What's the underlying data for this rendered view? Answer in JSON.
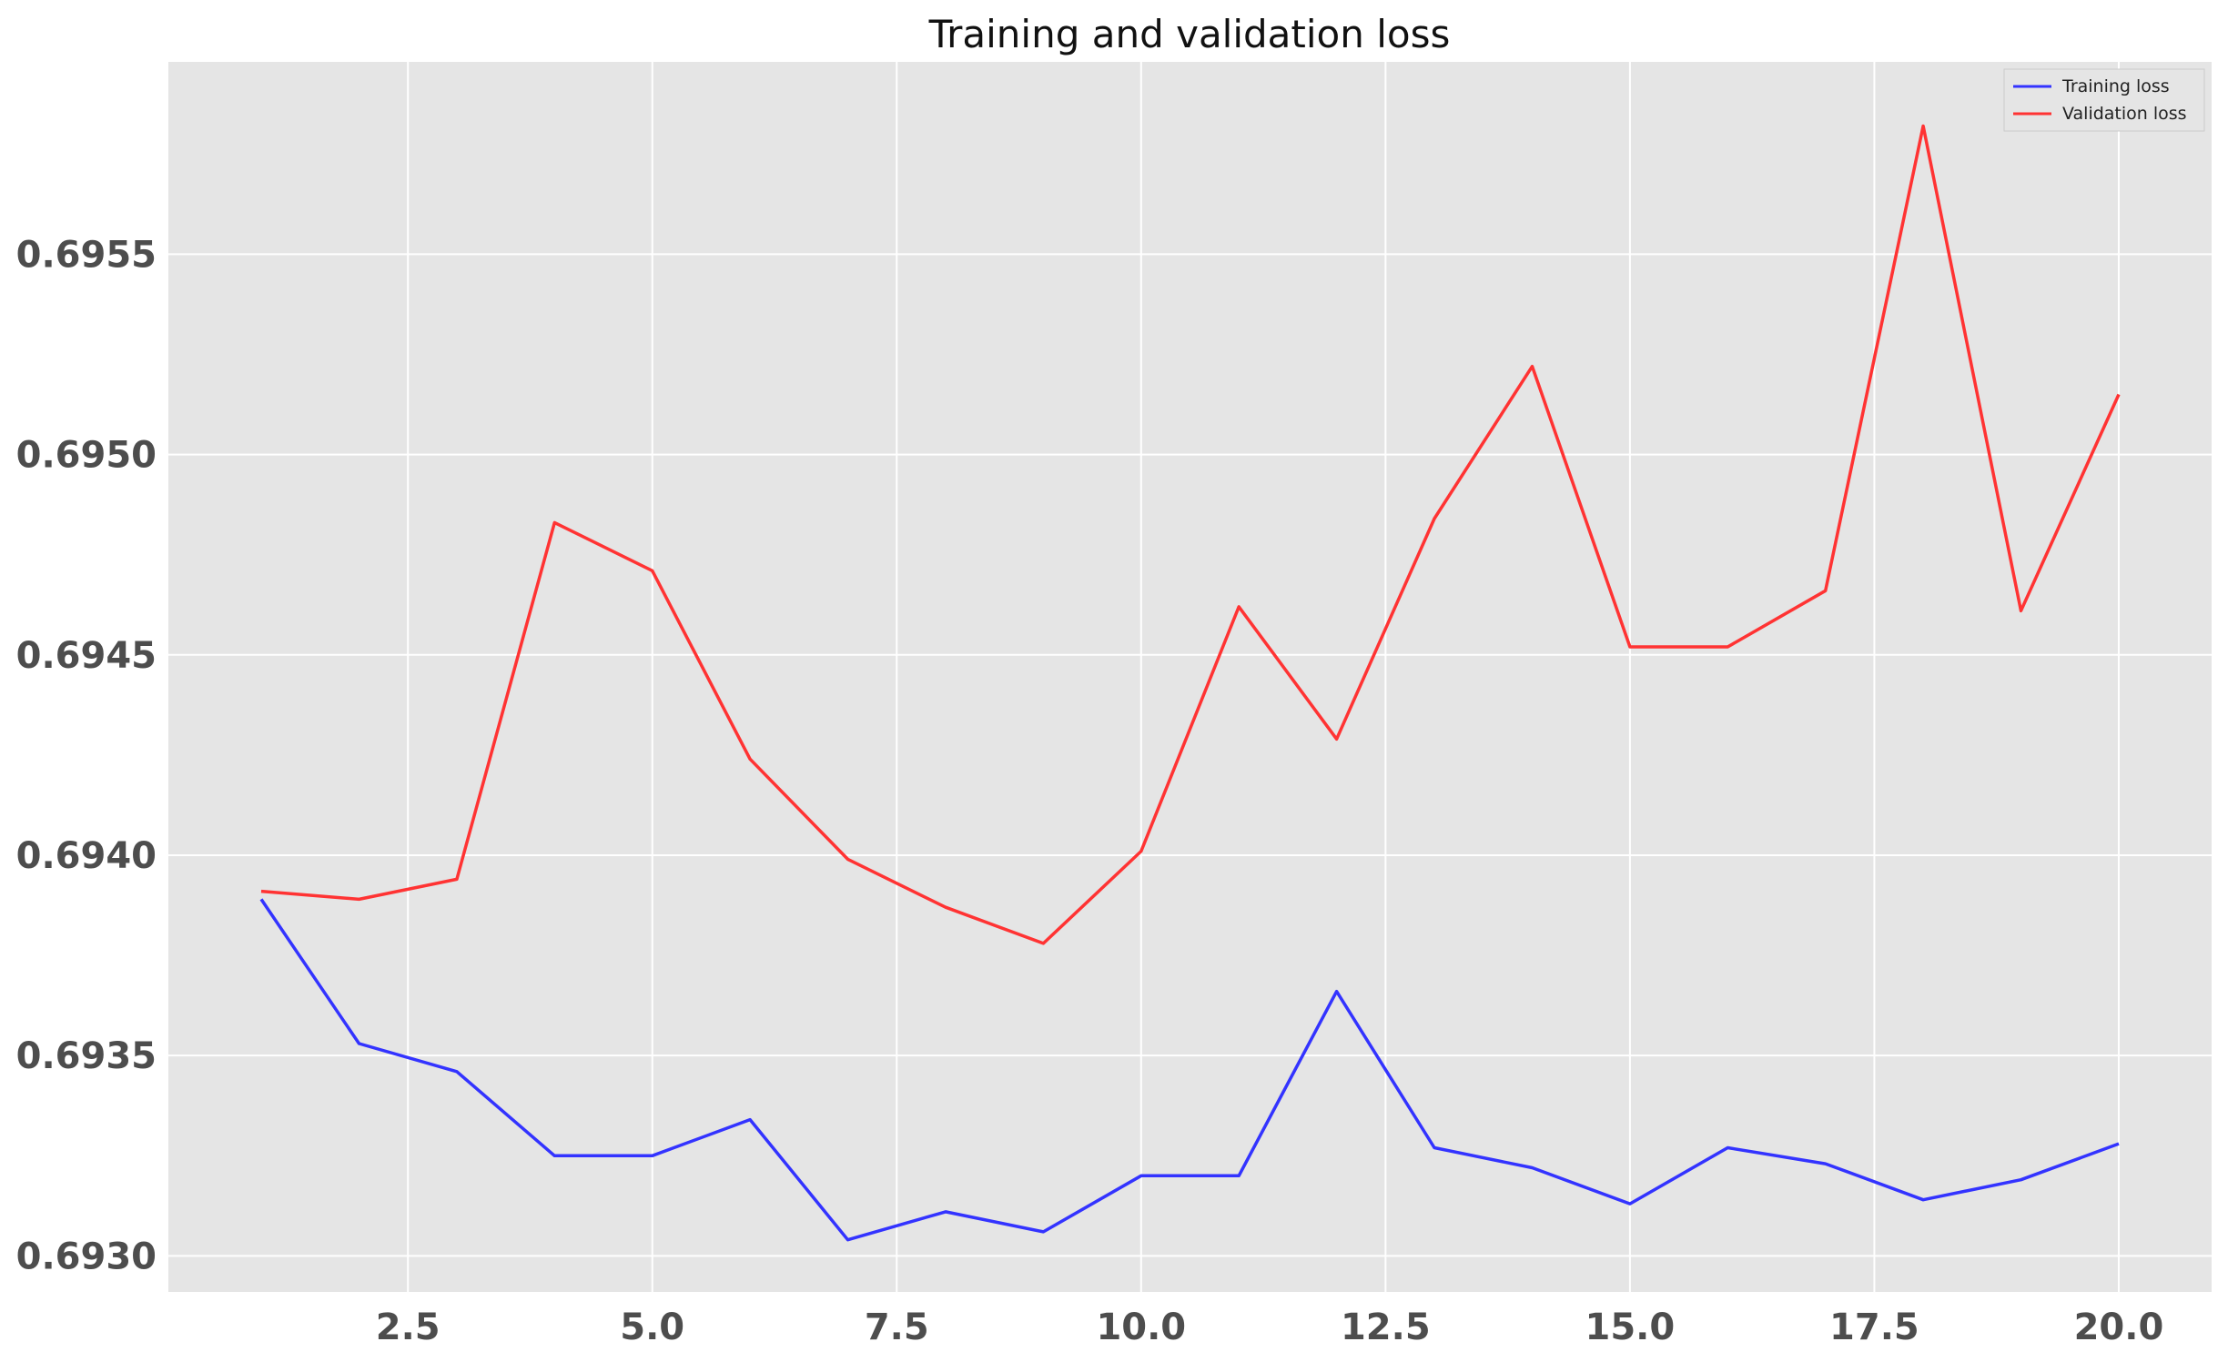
{
  "chart_data": {
    "type": "line",
    "title": "Training and validation loss",
    "xlabel": "",
    "ylabel": "",
    "xlim": [
      0.05,
      20.95
    ],
    "ylim": [
      0.69291,
      0.69598
    ],
    "xticks": [
      2.5,
      5.0,
      7.5,
      10.0,
      12.5,
      15.0,
      17.5,
      20.0
    ],
    "xtick_labels": [
      "2.5",
      "5.0",
      "7.5",
      "10.0",
      "12.5",
      "15.0",
      "17.5",
      "20.0"
    ],
    "yticks": [
      0.693,
      0.6935,
      0.694,
      0.6945,
      0.695,
      0.6955
    ],
    "ytick_labels": [
      "0.6930",
      "0.6935",
      "0.6940",
      "0.6945",
      "0.6950",
      "0.6955"
    ],
    "grid": true,
    "legend_position": "top-right",
    "x": [
      1,
      2,
      3,
      4,
      5,
      6,
      7,
      8,
      9,
      10,
      11,
      12,
      13,
      14,
      15,
      16,
      17,
      18,
      19,
      20
    ],
    "series": [
      {
        "name": "Training loss",
        "color": "#3333ff",
        "values": [
          0.69389,
          0.69353,
          0.69346,
          0.69325,
          0.69325,
          0.69334,
          0.69304,
          0.69311,
          0.69306,
          0.6932,
          0.6932,
          0.69366,
          0.69327,
          0.69322,
          0.69313,
          0.69327,
          0.69323,
          0.69314,
          0.69319,
          0.69328
        ]
      },
      {
        "name": "Validation loss",
        "color": "#ff3333",
        "values": [
          0.69391,
          0.69389,
          0.69394,
          0.69483,
          0.69471,
          0.69424,
          0.69399,
          0.69387,
          0.69378,
          0.69401,
          0.69462,
          0.69429,
          0.69484,
          0.69522,
          0.69452,
          0.69452,
          0.69466,
          0.69582,
          0.69461,
          0.69515
        ]
      }
    ]
  }
}
